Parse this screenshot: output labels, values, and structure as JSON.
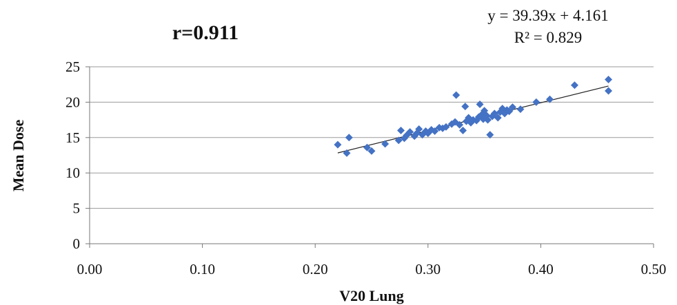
{
  "chart_data": {
    "type": "scatter",
    "title": "",
    "xlabel": "V20 Lung",
    "ylabel": "Mean Dose",
    "xlim": [
      0,
      0.5
    ],
    "ylim": [
      0,
      25
    ],
    "x_ticks": [
      "0.00",
      "0.10",
      "0.20",
      "0.30",
      "0.40",
      "0.50"
    ],
    "y_ticks": [
      "0",
      "5",
      "10",
      "15",
      "20",
      "25"
    ],
    "grid": "horizontal",
    "legend": "none",
    "marker_color": "#4472C4",
    "trendline_color": "#222222",
    "annotations": {
      "correlation": "r=0.911",
      "equation": "y = 39.39x + 4.161",
      "r_squared": "R² = 0.829"
    },
    "trendline": {
      "slope": 39.39,
      "intercept": 4.161,
      "x_range": [
        0.22,
        0.46
      ]
    },
    "series": [
      {
        "points": [
          [
            0.22,
            14.0
          ],
          [
            0.228,
            12.8
          ],
          [
            0.23,
            15.0
          ],
          [
            0.246,
            13.6
          ],
          [
            0.25,
            13.1
          ],
          [
            0.262,
            14.1
          ],
          [
            0.274,
            14.6
          ],
          [
            0.276,
            16.0
          ],
          [
            0.279,
            14.9
          ],
          [
            0.281,
            15.3
          ],
          [
            0.284,
            15.8
          ],
          [
            0.288,
            15.2
          ],
          [
            0.29,
            15.6
          ],
          [
            0.292,
            16.2
          ],
          [
            0.295,
            15.4
          ],
          [
            0.298,
            15.9
          ],
          [
            0.3,
            15.6
          ],
          [
            0.303,
            16.1
          ],
          [
            0.306,
            15.9
          ],
          [
            0.31,
            16.4
          ],
          [
            0.313,
            16.3
          ],
          [
            0.316,
            16.5
          ],
          [
            0.321,
            16.9
          ],
          [
            0.324,
            17.2
          ],
          [
            0.325,
            21.0
          ],
          [
            0.328,
            16.8
          ],
          [
            0.331,
            16.0
          ],
          [
            0.333,
            19.4
          ],
          [
            0.334,
            17.3
          ],
          [
            0.336,
            17.8
          ],
          [
            0.338,
            17.1
          ],
          [
            0.34,
            17.5
          ],
          [
            0.343,
            17.4
          ],
          [
            0.345,
            17.9
          ],
          [
            0.346,
            19.7
          ],
          [
            0.348,
            18.3
          ],
          [
            0.349,
            17.6
          ],
          [
            0.35,
            18.8
          ],
          [
            0.352,
            18.1
          ],
          [
            0.353,
            17.5
          ],
          [
            0.355,
            15.4
          ],
          [
            0.357,
            18.0
          ],
          [
            0.359,
            18.4
          ],
          [
            0.362,
            17.8
          ],
          [
            0.364,
            18.6
          ],
          [
            0.366,
            19.1
          ],
          [
            0.368,
            18.4
          ],
          [
            0.37,
            18.9
          ],
          [
            0.372,
            18.7
          ],
          [
            0.375,
            19.3
          ],
          [
            0.382,
            19.0
          ],
          [
            0.396,
            20.0
          ],
          [
            0.408,
            20.4
          ],
          [
            0.43,
            22.4
          ],
          [
            0.46,
            23.2
          ],
          [
            0.46,
            21.6
          ]
        ]
      }
    ]
  }
}
